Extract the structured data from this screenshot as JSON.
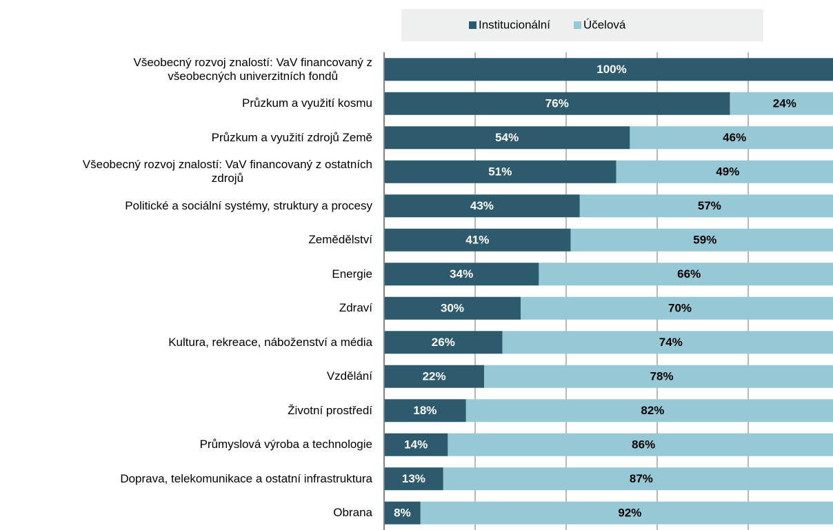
{
  "chart_data": {
    "type": "bar",
    "orientation": "horizontal",
    "stacked": true,
    "categories": [
      "Všeobecný rozvoj znalostí: VaV financovaný z\nvšeobecných univerzitních fondů",
      "Průzkum a využití kosmu",
      "Průzkum a využití zdrojů Země",
      "Všeobecný rozvoj znalostí: VaV financovaný z ostatních\nzdrojů",
      "Politické a sociální systémy, struktury a procesy",
      "Zemědělství",
      "Energie",
      "Zdraví",
      "Kultura, rekreace, náboženství a média",
      "Vzdělání",
      "Životní prostředí",
      "Průmyslová výroba a technologie",
      "Doprava, telekomunikace a ostatní infrastruktura",
      "Obrana"
    ],
    "series": [
      {
        "name": "Institucionální",
        "color": "#2d5a6d",
        "label_color": "#ffffff",
        "values": [
          100,
          76,
          54,
          51,
          43,
          41,
          34,
          30,
          26,
          22,
          18,
          14,
          13,
          8
        ],
        "value_labels": [
          "100%",
          "76%",
          "54%",
          "51%",
          "43%",
          "41%",
          "34%",
          "30%",
          "26%",
          "22%",
          "18%",
          "14%",
          "13%",
          "8%"
        ]
      },
      {
        "name": "Účelová",
        "color": "#96c8d6",
        "label_color": "#000000",
        "values": [
          0,
          24,
          46,
          49,
          57,
          59,
          66,
          70,
          74,
          78,
          82,
          86,
          87,
          92
        ],
        "value_labels": [
          null,
          "24%",
          "46%",
          "49%",
          "57%",
          "59%",
          "66%",
          "70%",
          "74%",
          "78%",
          "82%",
          "86%",
          "87%",
          "92%"
        ]
      }
    ],
    "xlim": [
      0,
      100
    ],
    "xticks": [
      0,
      20,
      40,
      60,
      80,
      100
    ],
    "grid": true,
    "legend": "top"
  }
}
